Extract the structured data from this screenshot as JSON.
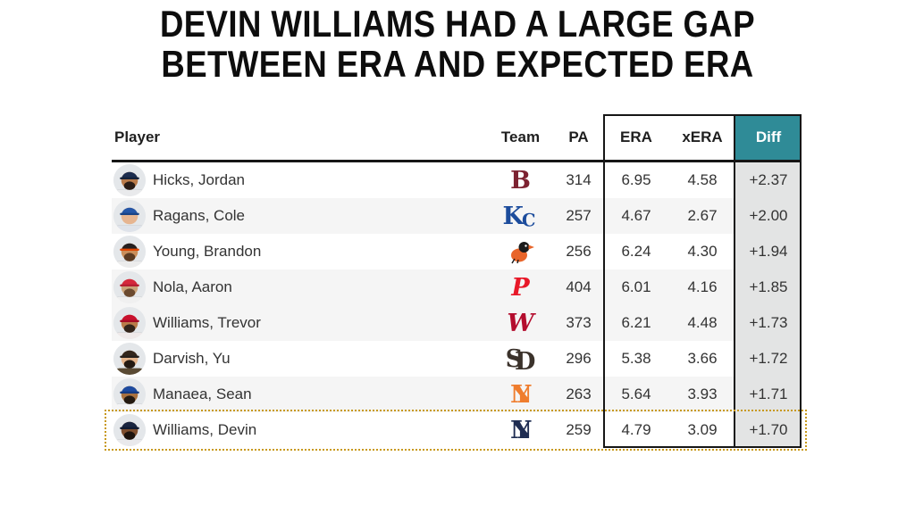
{
  "title": {
    "line1": "DEVIN WILLIAMS HAD A LARGE GAP",
    "line2": "BETWEEN ERA AND EXPECTED ERA"
  },
  "table": {
    "headers": {
      "player": "Player",
      "team": "Team",
      "pa": "PA",
      "era": "ERA",
      "xera": "xERA",
      "diff": "Diff"
    },
    "rows": [
      {
        "player": "Hicks, Jordan",
        "team": "BOS",
        "pa": "314",
        "era": "6.95",
        "xera": "4.58",
        "diff": "+2.37",
        "highlighted": false,
        "logo": {
          "type": "letter",
          "text": "B",
          "color": "#7D2231"
        },
        "avatar": {
          "cap": "#1C2D4F",
          "brim": "#142138",
          "skin": "#B97B4A",
          "beard": "#2A1D16",
          "jersey": "#E9EAEC"
        }
      },
      {
        "player": "Ragans, Cole",
        "team": "KC",
        "pa": "257",
        "era": "4.67",
        "xera": "2.67",
        "diff": "+2.00",
        "highlighted": false,
        "logo": {
          "type": "interlock",
          "a": "K",
          "b": "C",
          "color": "#1C4C9C",
          "overlapEm": -0.18,
          "bScale": 0.72,
          "bDy": 5
        },
        "avatar": {
          "cap": "#2456A7",
          "brim": "#1B4486",
          "skin": "#E6B591",
          "beard": "",
          "jersey": "#DFE3EA"
        }
      },
      {
        "player": "Young, Brandon",
        "team": "BAL",
        "pa": "256",
        "era": "6.24",
        "xera": "4.30",
        "diff": "+1.94",
        "highlighted": false,
        "logo": {
          "type": "bird",
          "body": "#E8652A",
          "head": "#1A1A1A",
          "beak": "#E8652A"
        },
        "avatar": {
          "cap": "#241F20",
          "brim": "#DF4601",
          "skin": "#C98E5A",
          "beard": "#5B3A21",
          "jersey": "#ECECEC"
        }
      },
      {
        "player": "Nola, Aaron",
        "team": "PHI",
        "pa": "404",
        "era": "6.01",
        "xera": "4.16",
        "diff": "+1.85",
        "highlighted": false,
        "logo": {
          "type": "letter",
          "text": "P",
          "color": "#E81828",
          "italic": true
        },
        "avatar": {
          "cap": "#D5283C",
          "brim": "#B51F31",
          "skin": "#CAA379",
          "beard": "#6B4A2F",
          "jersey": "#F0F0F0"
        }
      },
      {
        "player": "Williams, Trevor",
        "team": "WSH",
        "pa": "373",
        "era": "6.21",
        "xera": "4.48",
        "diff": "+1.73",
        "highlighted": false,
        "logo": {
          "type": "letter",
          "text": "W",
          "color": "#B40D2E",
          "italic": true
        },
        "avatar": {
          "cap": "#C8102E",
          "brim": "#A50D26",
          "skin": "#B97B4A",
          "beard": "#33241A",
          "jersey": "#EFE9E9"
        }
      },
      {
        "player": "Darvish, Yu",
        "team": "SD",
        "pa": "296",
        "era": "5.38",
        "xera": "3.66",
        "diff": "+1.72",
        "highlighted": false,
        "logo": {
          "type": "interlock",
          "a": "S",
          "b": "D",
          "color": "#3B322B",
          "overlapEm": -0.34,
          "bScale": 1,
          "bDy": 3
        },
        "avatar": {
          "cap": "#33261C",
          "brim": "#27201C",
          "skin": "#E3B38B",
          "beard": "#241A12",
          "jersey": "#5A4A33"
        }
      },
      {
        "player": "Manaea, Sean",
        "team": "NYM",
        "pa": "263",
        "era": "5.64",
        "xera": "3.93",
        "diff": "+1.71",
        "highlighted": false,
        "logo": {
          "type": "interlock",
          "a": "N",
          "b": "Y",
          "color": "#EF7D2E",
          "overlapEm": -0.78,
          "bScale": 1,
          "bDy": 0
        },
        "avatar": {
          "cap": "#1D4BA0",
          "brim": "#163A80",
          "skin": "#A9713F",
          "beard": "#241A12",
          "jersey": "#F4F4F6"
        }
      },
      {
        "player": "Williams, Devin",
        "team": "NYY",
        "pa": "259",
        "era": "4.79",
        "xera": "3.09",
        "diff": "+1.70",
        "highlighted": true,
        "logo": {
          "type": "interlock",
          "a": "N",
          "b": "Y",
          "color": "#1F2D52",
          "overlapEm": -0.78,
          "bScale": 1,
          "bDy": 0
        },
        "avatar": {
          "cap": "#1A2540",
          "brim": "#121B30",
          "skin": "#7D4E2E",
          "beard": "#1D140E",
          "jersey": "#E9E9EC"
        }
      }
    ]
  },
  "colors": {
    "accent_teal": "#2F8B97",
    "diff_col_bg": "#E3E4E4",
    "alt_row_bg": "#F5F5F5",
    "dotted": "#C8991B",
    "border_dark": "#161616",
    "text_cell": "#333333",
    "text_header": "#1F1F1F",
    "title_color": "#0D0D0D"
  },
  "chart_data": {
    "type": "table",
    "title": "DEVIN WILLIAMS HAD A LARGE GAP BETWEEN ERA AND EXPECTED ERA",
    "columns": [
      "Player",
      "Team",
      "PA",
      "ERA",
      "xERA",
      "Diff"
    ],
    "rows": [
      [
        "Hicks, Jordan",
        "BOS",
        314,
        6.95,
        4.58,
        "+2.37"
      ],
      [
        "Ragans, Cole",
        "KC",
        257,
        4.67,
        2.67,
        "+2.00"
      ],
      [
        "Young, Brandon",
        "BAL",
        256,
        6.24,
        4.3,
        "+1.94"
      ],
      [
        "Nola, Aaron",
        "PHI",
        404,
        6.01,
        4.16,
        "+1.85"
      ],
      [
        "Williams, Trevor",
        "WSH",
        373,
        6.21,
        4.48,
        "+1.73"
      ],
      [
        "Darvish, Yu",
        "SD",
        296,
        5.38,
        3.66,
        "+1.72"
      ],
      [
        "Manaea, Sean",
        "NYM",
        263,
        5.64,
        3.93,
        "+1.71"
      ],
      [
        "Williams, Devin",
        "NYY",
        259,
        4.79,
        3.09,
        "+1.70"
      ]
    ],
    "highlighted_row": "Williams, Devin",
    "legend_position": "none",
    "grid": false
  }
}
